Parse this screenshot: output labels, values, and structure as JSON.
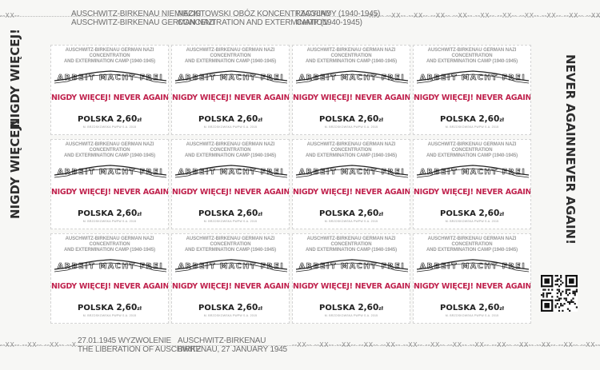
{
  "header": {
    "col1": [
      "AUSCHWITZ-BIRKENAU NIEMIECKI",
      "AUSCHWITZ-BIRKENAU GERMAN NAZI"
    ],
    "col2": [
      "NAZISTOWSKI OBÓZ KONCENTRACYJNY",
      "CONCENTRATION AND EXTERMINATION"
    ],
    "col3": [
      "I ZAGŁADY (1940-1945)",
      "CAMP (1940-1945)"
    ]
  },
  "footer": {
    "col1": [
      "27.01.1945 WYZWOLENIE",
      "THE LIBERATION OF AUSCHWITZ"
    ],
    "col2": [
      "AUSCHWITZ-BIRKENAU",
      "BIRKENAU, 27 JANUARY 1945"
    ]
  },
  "separator_text": "--XX--",
  "side": {
    "left_upper": "NIGDY WIĘCEJ!",
    "left_lower": "NIGDY WIĘCEJ!",
    "right_upper": "NEVER AGAIN!",
    "right_lower": "NEVER AGAIN!"
  },
  "stamp": {
    "header_line1": "AUSCHWITZ-BIRKENAU GERMAN NAZI CONCENTRATION",
    "header_line2": "AND EXTERMINATION CAMP (1940-1945)",
    "gate_text": "ARBEIT MACHT FREI",
    "motto": "NIGDY WIĘCEJ! NEVER AGAIN!",
    "country": "POLSKA",
    "value": "2,60",
    "currency": "zł",
    "credit": "M. BRZOSKOWSKA   PWPW S.A. 2015"
  },
  "stamp_count": 12,
  "colors": {
    "motto": "#c0234e",
    "paper": "#f7f7f5",
    "stamp_bg": "#ffffff"
  }
}
